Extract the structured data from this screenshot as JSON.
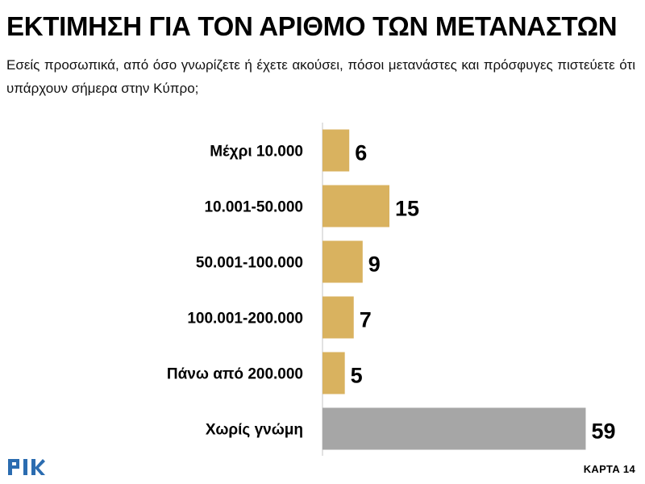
{
  "header": {
    "title": "ΕΚΤΙΜΗΣΗ ΓΙΑ ΤΟΝ ΑΡΙΘΜΟ ΤΩΝ ΜΕΤΑΝΑΣΤΩΝ",
    "subtitle": "Εσείς προσωπικά, από όσο γνωρίζετε ή έχετε ακούσει, πόσοι μετανάστες  και πρόσφυγες πιστεύετε ότι υπάρχουν σήμερα στην Κύπρο;"
  },
  "chart_data": {
    "type": "bar",
    "orientation": "horizontal",
    "categories": [
      "Μέχρι 10.000",
      "10.001-50.000",
      "50.001-100.000",
      "100.001-200.000",
      "Πάνω από 200.000",
      "Χωρίς γνώμη"
    ],
    "values": [
      6,
      15,
      9,
      7,
      5,
      59
    ],
    "colors": [
      "#d9b25f",
      "#d9b25f",
      "#d9b25f",
      "#d9b25f",
      "#d9b25f",
      "#a6a6a6"
    ],
    "data_labels": [
      "6",
      "15",
      "9",
      "7",
      "5",
      "59"
    ],
    "xlim": [
      0,
      60
    ],
    "grid": false,
    "axis_color": "#d9d9d9"
  },
  "footer": {
    "logo_text": "ΡΙΚ",
    "card_label": "ΚΑΡΤΑ 14"
  }
}
